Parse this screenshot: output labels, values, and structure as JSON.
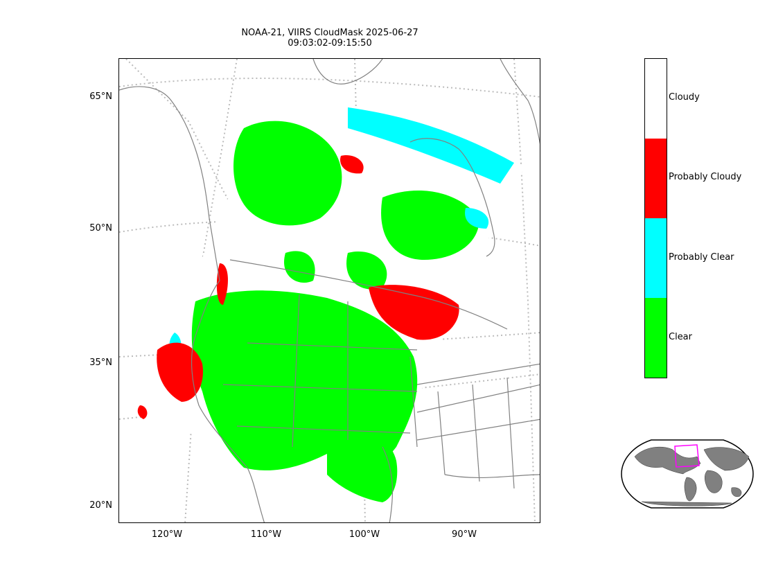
{
  "figure": {
    "title_line1": "NOAA-21, VIIRS CloudMask 2025-06-27",
    "title_line2": "09:03:02-09:15:50"
  },
  "map": {
    "latitude_labels": [
      "65°N",
      "50°N",
      "35°N",
      "20°N"
    ],
    "longitude_labels": [
      "120°W",
      "110°W",
      "100°W",
      "90°W"
    ],
    "coastline_color": "#808080",
    "graticule_color": "#bbbbbb"
  },
  "legend": {
    "categories": [
      {
        "label": "Cloudy",
        "color": "#ffffff"
      },
      {
        "label": "Probably Cloudy",
        "color": "#ff0000"
      },
      {
        "label": "Probably Clear",
        "color": "#00ffff"
      },
      {
        "label": "Clear",
        "color": "#00ff00"
      }
    ]
  },
  "inset": {
    "land_color": "#808080",
    "footprint_color": "#ff00ff"
  }
}
